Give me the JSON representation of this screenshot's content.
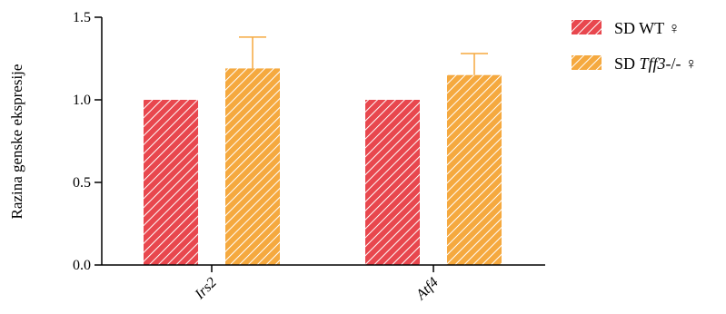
{
  "chart_data": {
    "type": "bar",
    "categories": [
      "Irs2",
      "Atf4"
    ],
    "ylabel": "Razina genske ekspresije",
    "ylim": [
      0,
      1.5
    ],
    "yticks": [
      0.0,
      0.5,
      1.0,
      1.5
    ],
    "ytick_labels": [
      "0.0",
      "0.5",
      "1.0",
      "1.5"
    ],
    "grid": false,
    "error_bars": "upper only",
    "bar_pattern": "diagonal hatch",
    "legend_position": "top-right",
    "series": [
      {
        "name": "SD WT ♀",
        "color": "#e8474e",
        "values": [
          1.0,
          1.0
        ],
        "errors": [
          0,
          0
        ]
      },
      {
        "name_prefix": "SD ",
        "name_italic": "Tff3",
        "name_suffix": "-/- ♀",
        "color": "#f5a93f",
        "values": [
          1.19,
          1.15
        ],
        "errors": [
          0.19,
          0.13
        ]
      }
    ]
  }
}
